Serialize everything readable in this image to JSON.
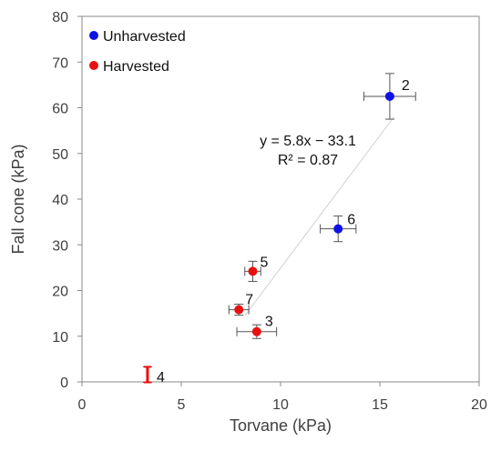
{
  "chart_data": {
    "type": "scatter",
    "xlabel": "Torvane (kPa)",
    "ylabel": "Fall cone (kPa)",
    "xlim": [
      0,
      20
    ],
    "ylim": [
      0,
      80
    ],
    "x_ticks": [
      0,
      5,
      10,
      15,
      20
    ],
    "y_ticks": [
      0,
      10,
      20,
      30,
      40,
      50,
      60,
      70,
      80
    ],
    "x_tick_labels": [
      "0",
      "5",
      "10",
      "15",
      "20"
    ],
    "y_tick_labels": [
      "0",
      "10",
      "20",
      "30",
      "40",
      "50",
      "60",
      "70",
      "80"
    ],
    "grid": false,
    "legend_position": "top-left",
    "series": [
      {
        "name": "Unharvested",
        "color": "#1010e8",
        "points": [
          {
            "label": "2",
            "x": 15.5,
            "y": 62.5,
            "xerr": 1.3,
            "yerr": 5.0
          },
          {
            "label": "6",
            "x": 12.9,
            "y": 33.5,
            "xerr": 0.9,
            "yerr": 2.8
          }
        ]
      },
      {
        "name": "Harvested",
        "color": "#e81010",
        "points": [
          {
            "label": "5",
            "x": 8.6,
            "y": 24.2,
            "xerr": 0.4,
            "yerr": 2.2
          },
          {
            "label": "7",
            "x": 7.9,
            "y": 15.8,
            "xerr": 0.5,
            "yerr": 1.2
          },
          {
            "label": "3",
            "x": 8.8,
            "y": 11.0,
            "xerr": 1.0,
            "yerr": 1.5
          },
          {
            "label": "4",
            "x": 3.3,
            "y": 1.6,
            "xerr": 0.0,
            "yerr": 1.7
          }
        ]
      }
    ],
    "trendline": {
      "slope": 5.8,
      "intercept": -33.1,
      "x_range": [
        8.2,
        15.7
      ],
      "color": "#d0d0d0",
      "equation": "y = 5.8x − 33.1",
      "r2": "R² = 0.87"
    }
  }
}
